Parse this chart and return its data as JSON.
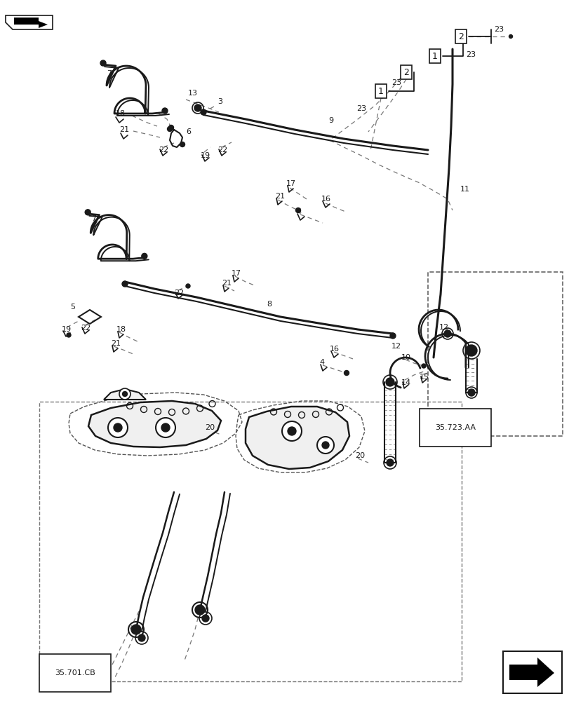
{
  "bg_color": "#ffffff",
  "lc": "#1a1a1a",
  "fig_width": 8.12,
  "fig_height": 10.0,
  "ref_35723": "35.723.AA",
  "ref_35701": "35.701.CB"
}
